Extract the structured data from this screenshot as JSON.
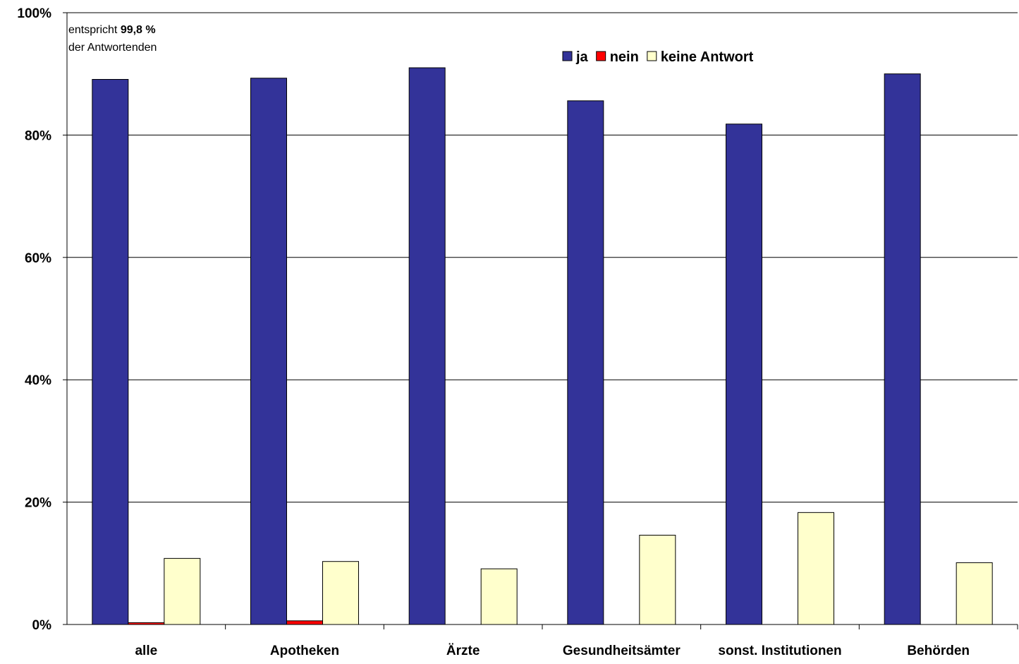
{
  "chart_data": {
    "type": "bar",
    "categories": [
      "alle",
      "Apotheken",
      "Ärzte",
      "Gesundheitsämter",
      "sonst. Institutionen",
      "Behörden"
    ],
    "series": [
      {
        "name": "ja",
        "color": "#333399",
        "values": [
          89.1,
          89.3,
          91.0,
          85.6,
          81.8,
          90.0
        ]
      },
      {
        "name": "nein",
        "color": "#ff0000",
        "values": [
          0.3,
          0.6,
          0,
          0,
          0,
          0
        ]
      },
      {
        "name": "keine Antwort",
        "color": "#ffffcc",
        "values": [
          10.8,
          10.3,
          9.1,
          14.6,
          18.3,
          10.1
        ]
      }
    ],
    "ylim": [
      0,
      100
    ],
    "yticks": [
      "0%",
      "20%",
      "40%",
      "60%",
      "80%",
      "100%"
    ],
    "grid": true,
    "legend_position": "top-center",
    "annotation": {
      "line1_prefix": "entspricht ",
      "line1_value": "99,8 %",
      "line2": "der Antwortenden"
    }
  }
}
